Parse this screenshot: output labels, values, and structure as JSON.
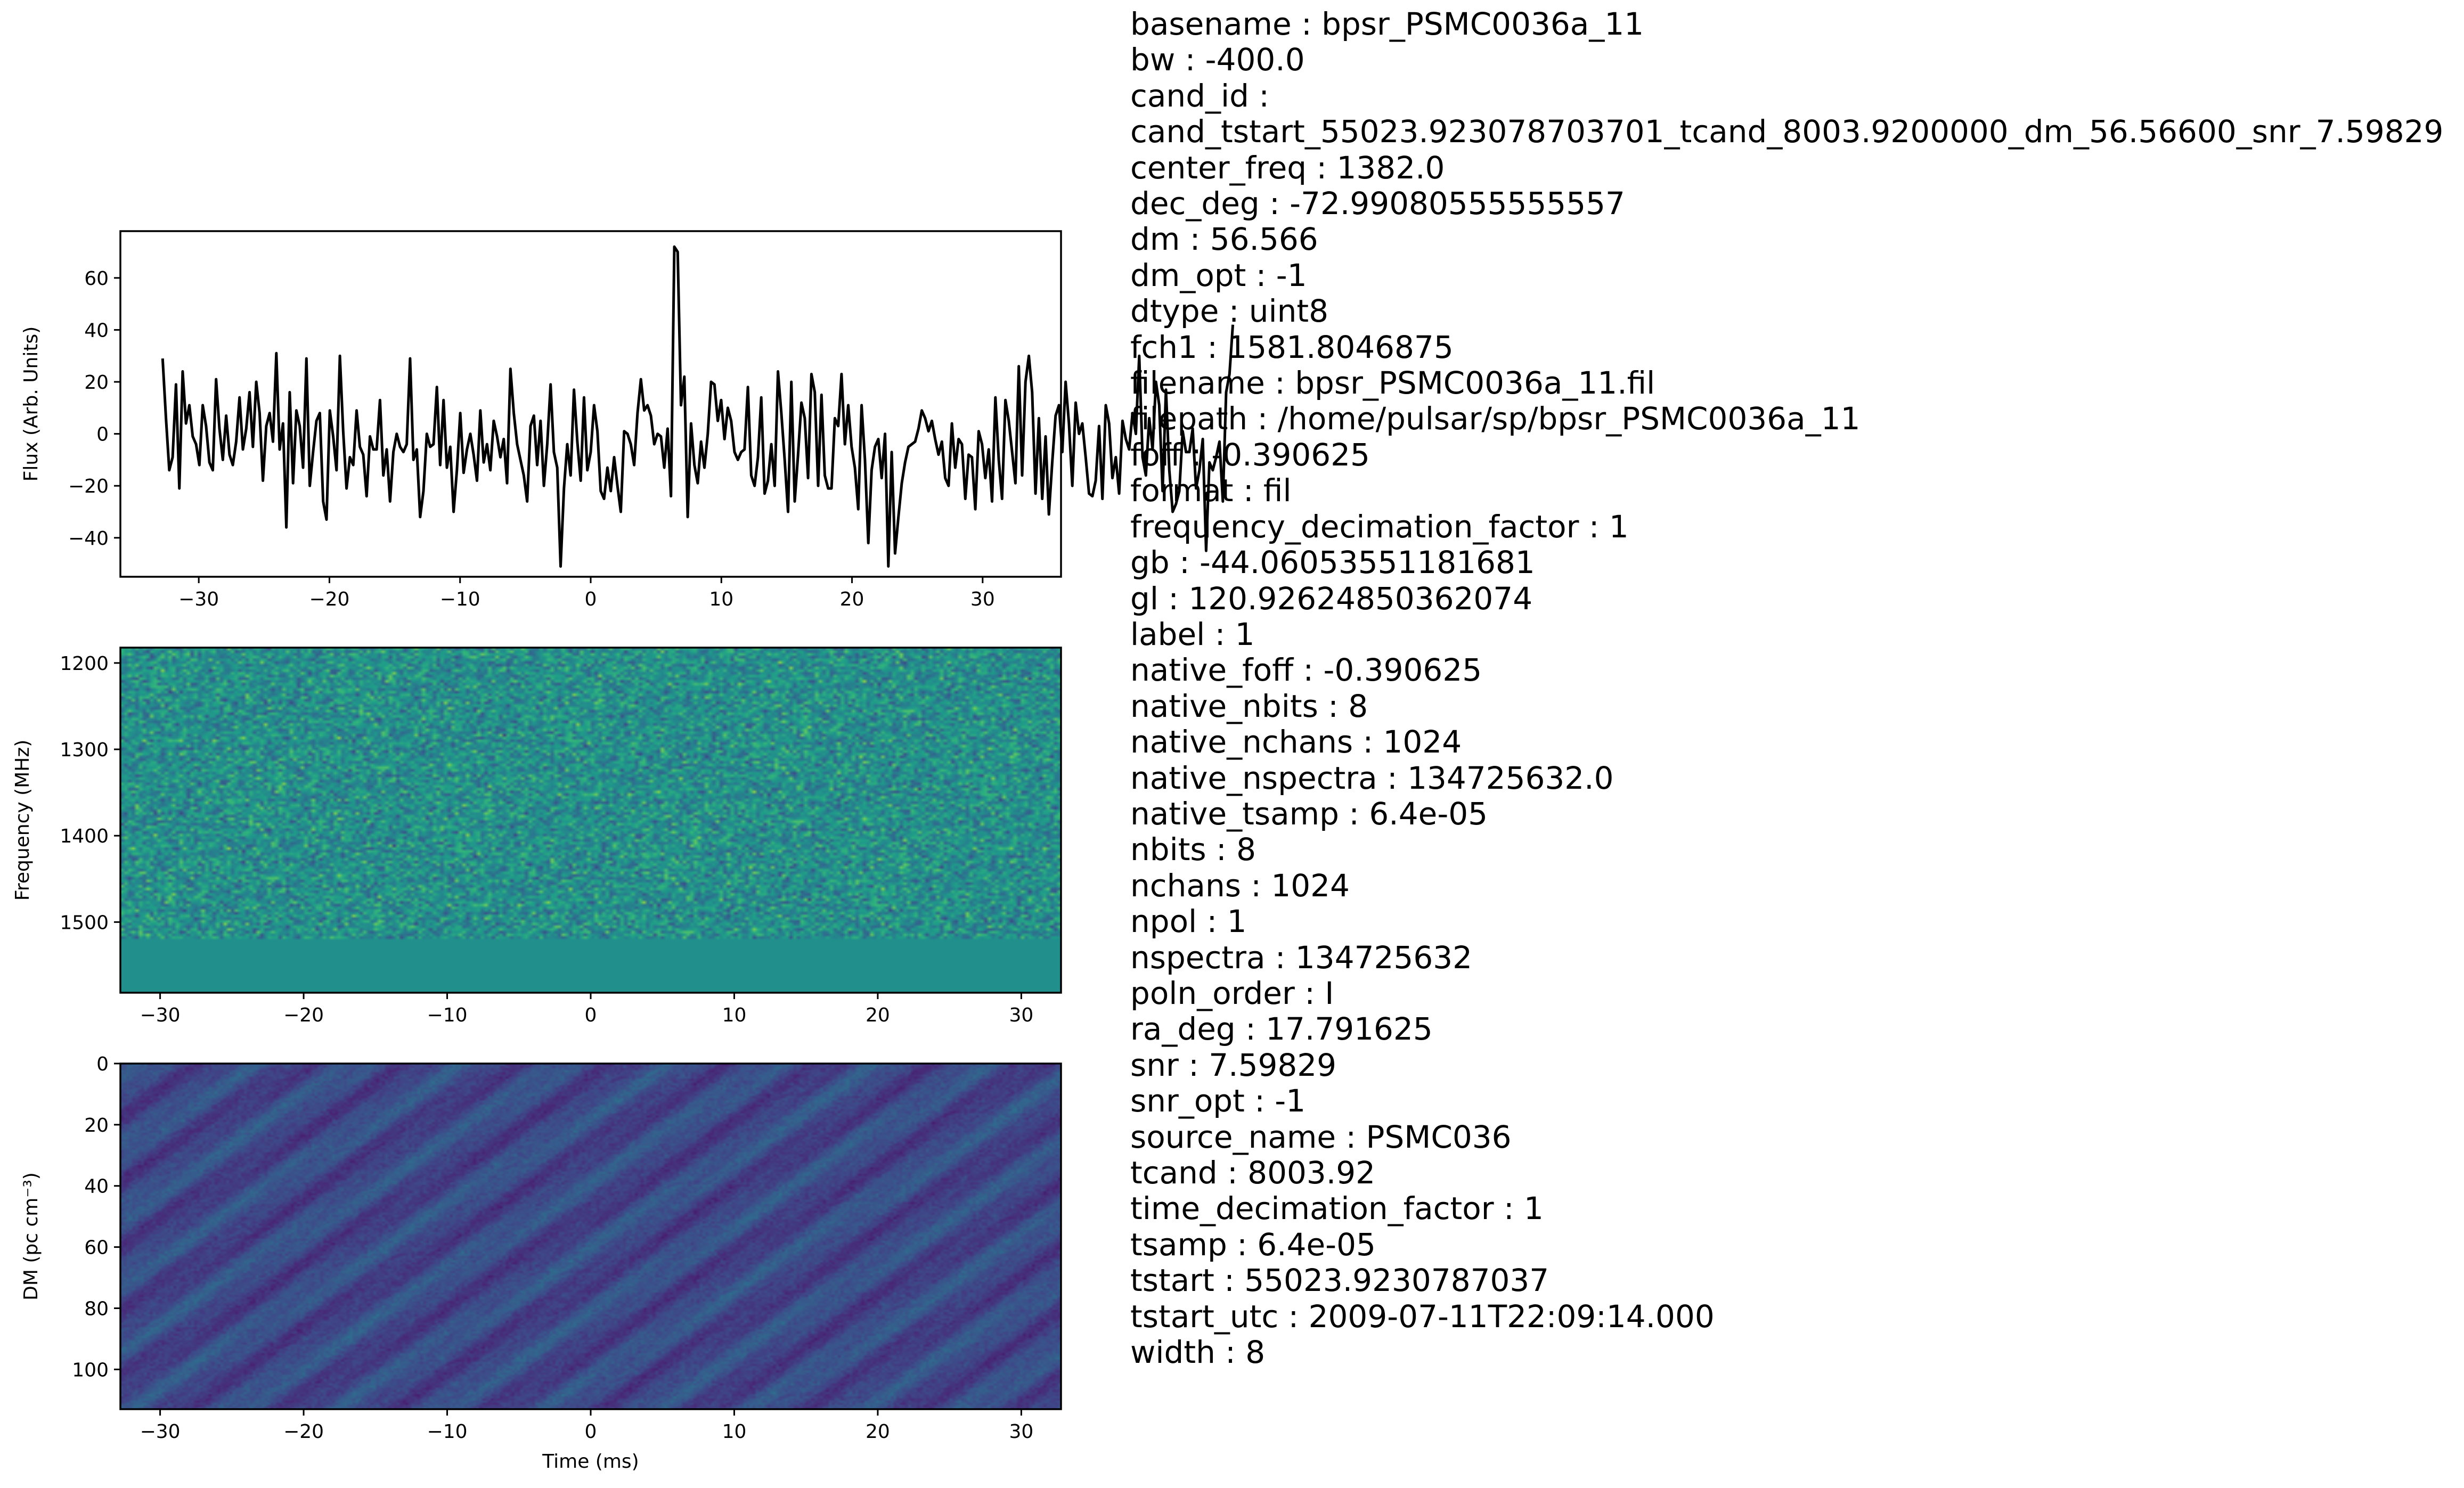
{
  "chart_data": [
    {
      "type": "line",
      "title": "",
      "xlabel": "",
      "ylabel": "Flux (Arb. Units)",
      "xlim": [
        -36,
        36
      ],
      "ylim": [
        -55,
        78
      ],
      "xticks": [
        -30,
        -20,
        -10,
        0,
        10,
        20,
        30
      ],
      "yticks": [
        -40,
        -20,
        0,
        20,
        40,
        60
      ],
      "grid": false,
      "x_start": -32.768,
      "x_step": 0.256,
      "y": [
        29,
        6,
        -14,
        -9,
        19,
        -21,
        24,
        4,
        11,
        -1,
        -4,
        -12,
        11,
        3,
        -11,
        -14,
        21,
        2,
        -10,
        7,
        -8,
        -12,
        -3,
        14,
        -6,
        2,
        16,
        -5,
        20,
        8,
        -18,
        3,
        8,
        -3,
        31,
        -6,
        4,
        -36,
        16,
        -19,
        9,
        3,
        -13,
        29,
        -20,
        -7,
        5,
        8,
        -26,
        -33,
        9,
        -1,
        -14,
        30,
        1,
        -21,
        -9,
        -12,
        9,
        -5,
        -8,
        -24,
        -1,
        -6,
        -6,
        13,
        -16,
        -6,
        -26,
        -7,
        0,
        -5,
        -7,
        -4,
        29,
        -10,
        -6,
        -32,
        -22,
        0,
        -5,
        -4,
        18,
        -12,
        13,
        -13,
        -5,
        -30,
        -14,
        8,
        -15,
        -6,
        0,
        -8,
        -18,
        9,
        -11,
        -4,
        -14,
        5,
        -1,
        -9,
        -2,
        -19,
        25,
        8,
        -4,
        -10,
        -16,
        -26,
        3,
        7,
        -12,
        5,
        -20,
        -4,
        19,
        -7,
        -13,
        -51,
        -21,
        -4,
        -16,
        17,
        -3,
        -18,
        14,
        -14,
        -7,
        11,
        1,
        -22,
        -25,
        -13,
        -22,
        -9,
        -20,
        -30,
        1,
        0,
        -4,
        -12,
        8,
        21,
        9,
        11,
        7,
        -4,
        0,
        -1,
        -13,
        2,
        -24,
        72,
        70,
        11,
        22,
        -32,
        4,
        -12,
        -19,
        -3,
        -13,
        0,
        20,
        19,
        5,
        13,
        -2,
        10,
        5,
        -7,
        -10,
        -7,
        -6,
        18,
        -16,
        -20,
        -9,
        14,
        -23,
        -18,
        -4,
        -20,
        24,
        8,
        -10,
        -30,
        20,
        -26,
        -8,
        12,
        6,
        -17,
        23,
        16,
        -20,
        15,
        -16,
        -21,
        -21,
        6,
        3,
        23,
        -4,
        11,
        -5,
        -13,
        -29,
        11,
        -10,
        -42,
        -14,
        -5,
        -2,
        -17,
        0,
        -51,
        -7,
        -46,
        -32,
        -19,
        -11,
        -5,
        -4,
        -3,
        2,
        9,
        6,
        1,
        5,
        -2,
        -8,
        -3,
        -17,
        -20,
        4,
        -13,
        -2,
        -4,
        -25,
        -8,
        -9,
        -29,
        1,
        -4,
        -17,
        -6,
        -26,
        14,
        -10,
        -25,
        13,
        5,
        -7,
        -19,
        26,
        -16,
        20,
        30,
        16,
        -23,
        6,
        -25,
        -1,
        -31,
        -11,
        7,
        11,
        -7,
        20,
        4,
        -20,
        12,
        0,
        4,
        -9,
        -23,
        -24,
        -18,
        3,
        -25,
        11,
        4,
        -17,
        -9,
        -23,
        5,
        -2,
        -6,
        8,
        0,
        30,
        -9,
        -16,
        6,
        -6,
        20,
        11,
        -22,
        17,
        -14,
        -30,
        -27,
        -22,
        1,
        -7,
        -7,
        2,
        -21,
        -14,
        -2,
        -45,
        -11,
        -14,
        -9,
        -3,
        -26,
        16,
        23,
        42
      ]
    },
    {
      "type": "heatmap",
      "title": "",
      "xlabel": "",
      "ylabel": "Frequency (MHz)",
      "xlim": [
        -32.768,
        32.768
      ],
      "ylim": [
        1581.8,
        1182.2
      ],
      "xticks": [
        -30,
        -20,
        -10,
        0,
        10,
        20,
        30
      ],
      "yticks": [
        1200,
        1300,
        1400,
        1500
      ],
      "colormap": "viridis",
      "masked_band": [
        1520,
        1581.8
      ],
      "masked_color": "#21908d"
    },
    {
      "type": "heatmap",
      "title": "",
      "xlabel": "Time (ms)",
      "ylabel": "DM (pc cm⁻³)",
      "xlim": [
        -32.768,
        32.768
      ],
      "ylim": [
        113,
        0
      ],
      "xticks": [
        -30,
        -20,
        -10,
        0,
        10,
        20,
        30
      ],
      "yticks": [
        0,
        20,
        40,
        60,
        80,
        100
      ],
      "colormap": "viridis"
    }
  ],
  "metadata": [
    "basename : bpsr_PSMC0036a_11",
    "bw : -400.0",
    "cand_id :",
    "cand_tstart_55023.923078703701_tcand_8003.9200000_dm_56.56600_snr_7.59829",
    "center_freq : 1382.0",
    "dec_deg : -72.99080555555557",
    "dm : 56.566",
    "dm_opt : -1",
    "dtype : uint8",
    "fch1 : 1581.8046875",
    "filename : bpsr_PSMC0036a_11.fil",
    "filepath : /home/pulsar/sp/bpsr_PSMC0036a_11",
    "foff : -0.390625",
    "format : fil",
    "frequency_decimation_factor : 1",
    "gb : -44.06053551181681",
    "gl : 120.92624850362074",
    "label : 1",
    "native_foff : -0.390625",
    "native_nbits : 8",
    "native_nchans : 1024",
    "native_nspectra : 134725632.0",
    "native_tsamp : 6.4e-05",
    "nbits : 8",
    "nchans : 1024",
    "npol : 1",
    "nspectra : 134725632",
    "poln_order : I",
    "ra_deg : 17.791625",
    "snr : 7.59829",
    "snr_opt : -1",
    "source_name : PSMC036",
    "tcand : 8003.92",
    "time_decimation_factor : 1",
    "tsamp : 6.4e-05",
    "tstart : 55023.9230787037",
    "tstart_utc : 2009-07-11T22:09:14.000",
    "width : 8"
  ]
}
